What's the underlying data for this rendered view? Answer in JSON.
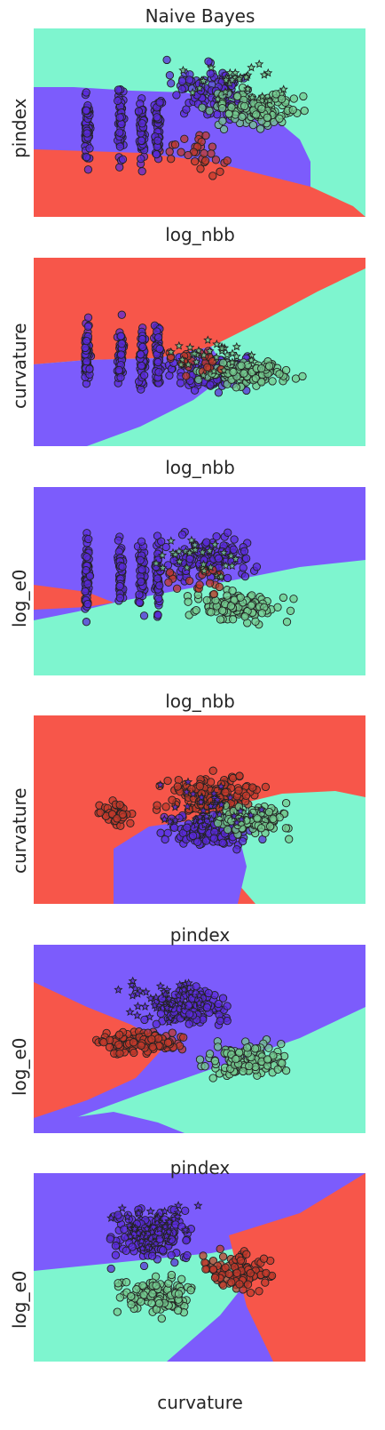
{
  "title": "Naive Bayes",
  "colors": {
    "red_region": "#f7564a",
    "blue_region": "#7c5cfc",
    "green_region": "#7ef5cf",
    "red_point": "#c0392b",
    "blue_point": "#5a2bd8",
    "green_point": "#74c98f",
    "edge": "#222222"
  },
  "chart_data": [
    {
      "type": "scatter",
      "xlabel": "log_nbb",
      "ylabel": "pindex",
      "grid": false,
      "regions": [
        "blue",
        "red",
        "green"
      ]
    },
    {
      "type": "scatter",
      "xlabel": "log_nbb",
      "ylabel": "curvature",
      "grid": false,
      "regions": [
        "red",
        "blue",
        "green"
      ]
    },
    {
      "type": "scatter",
      "xlabel": "log_nbb",
      "ylabel": "log_e0",
      "grid": false,
      "regions": [
        "blue",
        "red",
        "green"
      ]
    },
    {
      "type": "scatter",
      "xlabel": "pindex",
      "ylabel": "curvature",
      "grid": false,
      "regions": [
        "red",
        "blue",
        "green"
      ]
    },
    {
      "type": "scatter",
      "xlabel": "pindex",
      "ylabel": "log_e0",
      "grid": false,
      "regions": [
        "blue",
        "red",
        "green"
      ]
    },
    {
      "type": "scatter",
      "xlabel": "curvature",
      "ylabel": "log_e0",
      "grid": false,
      "regions": [
        "blue",
        "green",
        "red"
      ]
    }
  ]
}
